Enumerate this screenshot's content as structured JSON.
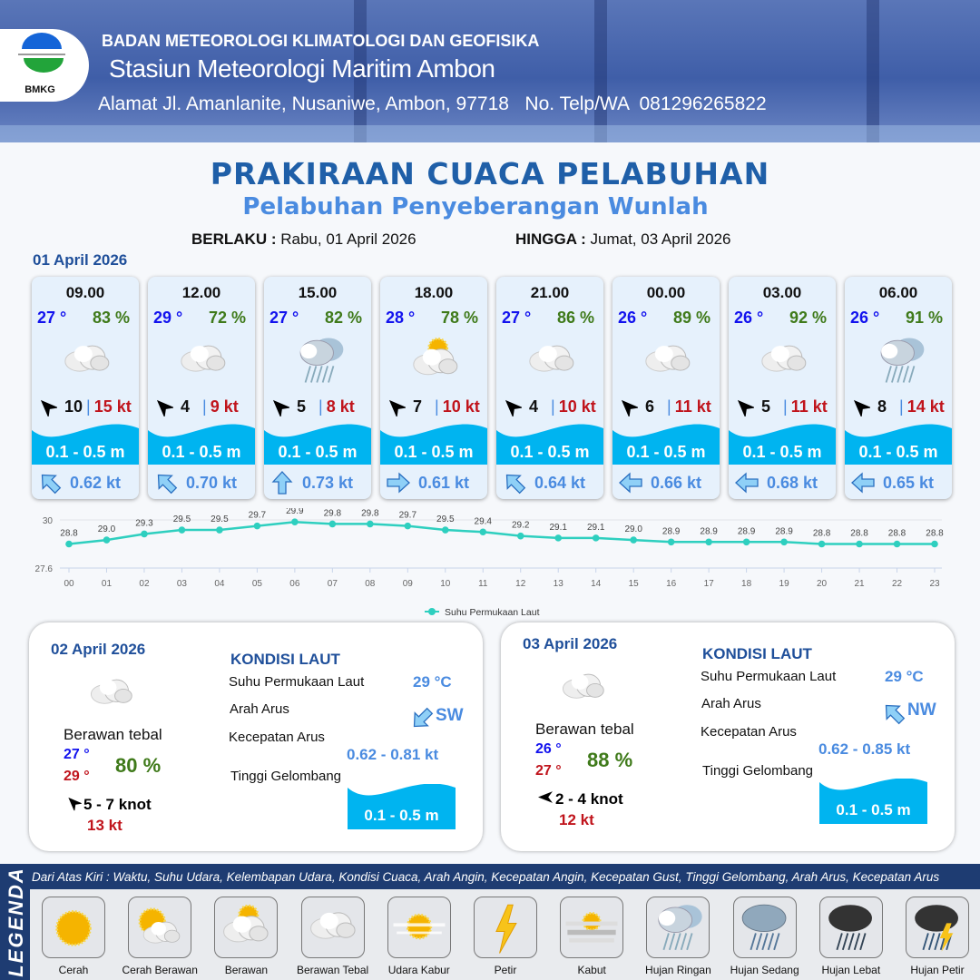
{
  "header": {
    "agency": "BADAN METEOROLOGI KLIMATOLOGI DAN GEOFISIKA",
    "station": "Stasiun Meteorologi Maritim Ambon",
    "address": "Alamat Jl. Amanlanite, Nusaniwe, Ambon, 97718   No. Telp/WA  081296265822",
    "logo_text": "BMKG"
  },
  "title": "PRAKIRAAN CUACA PELABUHAN",
  "subtitle": "Pelabuhan Penyeberangan Wunlah",
  "validity": {
    "from_label": "BERLAKU :",
    "from": "Rabu, 01 April 2026",
    "to_label": "HINGGA :",
    "to": "Jumat, 03 April 2026"
  },
  "day1": {
    "date": "01 April 2026",
    "cards": [
      {
        "time": "09.00",
        "temp": "27 °",
        "hum": "83 %",
        "weather": "berawan-tebal",
        "wind_dir": "NW",
        "wind": "10",
        "gust": "15 kt",
        "wave": "0.1 - 0.5 m",
        "current_dir": "NW",
        "current": "0.62 kt"
      },
      {
        "time": "12.00",
        "temp": "29 °",
        "hum": "72 %",
        "weather": "berawan-tebal",
        "wind_dir": "NW",
        "wind": "4",
        "gust": "9 kt",
        "wave": "0.1 - 0.5 m",
        "current_dir": "NW",
        "current": "0.70 kt"
      },
      {
        "time": "15.00",
        "temp": "27 °",
        "hum": "82 %",
        "weather": "hujan-ringan",
        "wind_dir": "NW",
        "wind": "5",
        "gust": "8 kt",
        "wave": "0.1 - 0.5 m",
        "current_dir": "N",
        "current": "0.73 kt"
      },
      {
        "time": "18.00",
        "temp": "28 °",
        "hum": "78 %",
        "weather": "berawan",
        "wind_dir": "NW",
        "wind": "7",
        "gust": "10 kt",
        "wave": "0.1 - 0.5 m",
        "current_dir": "E",
        "current": "0.61 kt"
      },
      {
        "time": "21.00",
        "temp": "27 °",
        "hum": "86 %",
        "weather": "berawan-tebal",
        "wind_dir": "NW",
        "wind": "4",
        "gust": "10 kt",
        "wave": "0.1 - 0.5 m",
        "current_dir": "NW",
        "current": "0.64 kt"
      },
      {
        "time": "00.00",
        "temp": "26 °",
        "hum": "89 %",
        "weather": "berawan-tebal",
        "wind_dir": "NW",
        "wind": "6",
        "gust": "11 kt",
        "wave": "0.1 - 0.5 m",
        "current_dir": "W",
        "current": "0.66 kt"
      },
      {
        "time": "03.00",
        "temp": "26 °",
        "hum": "92 %",
        "weather": "berawan-tebal",
        "wind_dir": "NW",
        "wind": "5",
        "gust": "11 kt",
        "wave": "0.1 - 0.5 m",
        "current_dir": "W",
        "current": "0.68 kt"
      },
      {
        "time": "06.00",
        "temp": "26 °",
        "hum": "91 %",
        "weather": "hujan-ringan",
        "wind_dir": "NW",
        "wind": "8",
        "gust": "14 kt",
        "wave": "0.1 - 0.5 m",
        "current_dir": "W",
        "current": "0.65 kt"
      }
    ]
  },
  "chart_data": {
    "type": "line",
    "x": [
      "00",
      "01",
      "02",
      "03",
      "04",
      "05",
      "06",
      "07",
      "08",
      "09",
      "10",
      "11",
      "12",
      "13",
      "14",
      "15",
      "16",
      "17",
      "18",
      "19",
      "20",
      "21",
      "22",
      "23"
    ],
    "series": [
      {
        "name": "Suhu Permukaan Laut",
        "values": [
          28.8,
          29.0,
          29.3,
          29.5,
          29.5,
          29.7,
          29.9,
          29.8,
          29.8,
          29.7,
          29.5,
          29.4,
          29.2,
          29.1,
          29.1,
          29.0,
          28.9,
          28.9,
          28.9,
          28.9,
          28.8,
          28.8,
          28.8,
          28.8
        ],
        "color": "#2ecfbf"
      }
    ],
    "ylim": [
      27.6,
      30
    ],
    "yticks": [
      "27.6",
      "30"
    ],
    "grid": true,
    "legend": "bottom"
  },
  "panels": [
    {
      "date": "02 April 2026",
      "weather": "berawan-tebal",
      "condition": "Berawan tebal",
      "tmin": "27 °",
      "tmax": "29 °",
      "hum": "80 %",
      "wind_dir": "NW",
      "wind": "5 - 7 knot",
      "gust": "13 kt",
      "sea_title": "KONDISI LAUT",
      "sst_label": "Suhu Permukaan Laut",
      "sst": "29 °C",
      "dir_label": "Arah Arus",
      "dir": "SW",
      "speed_label": "Kecepatan Arus",
      "speed": "0.62 - 0.81 kt",
      "wave_label": "Tinggi Gelombang",
      "wave": "0.1 - 0.5 m"
    },
    {
      "date": "03 April 2026",
      "weather": "berawan-tebal",
      "condition": "Berawan tebal",
      "tmin": "26 °",
      "tmax": "27 °",
      "hum": "88 %",
      "wind_dir": "W",
      "wind": "2 - 4 knot",
      "gust": "12 kt",
      "sea_title": "KONDISI LAUT",
      "sst_label": "Suhu Permukaan Laut",
      "sst": "29 °C",
      "dir_label": "Arah Arus",
      "dir": "NW",
      "speed_label": "Kecepatan Arus",
      "speed": "0.62 - 0.85 kt",
      "wave_label": "Tinggi Gelombang",
      "wave": "0.1 - 0.5 m"
    }
  ],
  "legend": {
    "title": "LEGENDA",
    "description": "Dari Atas Kiri : Waktu, Suhu Udara, Kelembapan Udara, Kondisi Cuaca, Arah Angin, Kecepatan Angin, Kecepatan Gust, Tinggi Gelombang, Arah Arus, Kecepatan Arus",
    "items": [
      {
        "label": "Cerah",
        "icon": "cerah"
      },
      {
        "label": "Cerah Berawan",
        "icon": "cerah-berawan"
      },
      {
        "label": "Berawan",
        "icon": "berawan"
      },
      {
        "label": "Berawan Tebal",
        "icon": "berawan-tebal"
      },
      {
        "label": "Udara Kabur",
        "icon": "udara-kabur"
      },
      {
        "label": "Petir",
        "icon": "petir"
      },
      {
        "label": "Kabut",
        "icon": "kabut"
      },
      {
        "label": "Hujan Ringan",
        "icon": "hujan-ringan"
      },
      {
        "label": "Hujan Sedang",
        "icon": "hujan-sedang"
      },
      {
        "label": "Hujan Lebat",
        "icon": "hujan-lebat"
      },
      {
        "label": "Hujan Petir",
        "icon": "hujan-petir"
      }
    ]
  },
  "colors": {
    "accent": "#1f5fa8",
    "wave": "#00b4f0",
    "temp": "#1212ee",
    "humidity": "#3f7a1a",
    "gust": "#c0141c",
    "current": "#4a8be0"
  }
}
